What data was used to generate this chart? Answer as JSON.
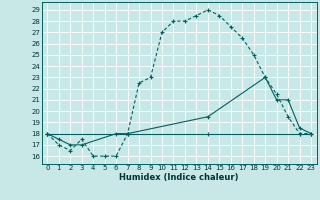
{
  "xlabel": "Humidex (Indice chaleur)",
  "x_ticks": [
    0,
    1,
    2,
    3,
    4,
    5,
    6,
    7,
    8,
    9,
    10,
    11,
    12,
    13,
    14,
    15,
    16,
    17,
    18,
    19,
    20,
    21,
    22,
    23
  ],
  "y_ticks": [
    16,
    17,
    18,
    19,
    20,
    21,
    22,
    23,
    24,
    25,
    26,
    27,
    28,
    29
  ],
  "xlim": [
    -0.5,
    23.5
  ],
  "ylim": [
    15.3,
    29.7
  ],
  "bg_color": "#c8e8e8",
  "grid_color": "#e8f8f8",
  "line_color": "#006060",
  "line1_x": [
    0,
    1,
    2,
    3,
    4,
    5,
    6,
    7,
    8,
    9,
    10,
    11,
    12,
    13,
    14,
    15,
    16,
    17,
    18,
    19,
    20,
    21,
    22,
    23
  ],
  "line1_y": [
    18,
    17,
    16.5,
    17.5,
    16,
    16,
    16,
    18,
    22.5,
    23,
    27,
    28,
    28,
    28.5,
    29,
    28.5,
    27.5,
    26.5,
    25,
    23,
    21.5,
    19.5,
    18,
    18
  ],
  "line2_x": [
    0,
    1,
    2,
    3,
    6,
    7,
    14,
    19,
    20,
    21,
    22,
    23
  ],
  "line2_y": [
    18,
    17.5,
    17,
    17,
    18,
    18,
    19.5,
    23,
    21,
    21,
    18.5,
    18
  ],
  "line3_x": [
    0,
    7,
    14,
    22,
    23
  ],
  "line3_y": [
    18,
    18,
    18,
    18,
    18
  ]
}
